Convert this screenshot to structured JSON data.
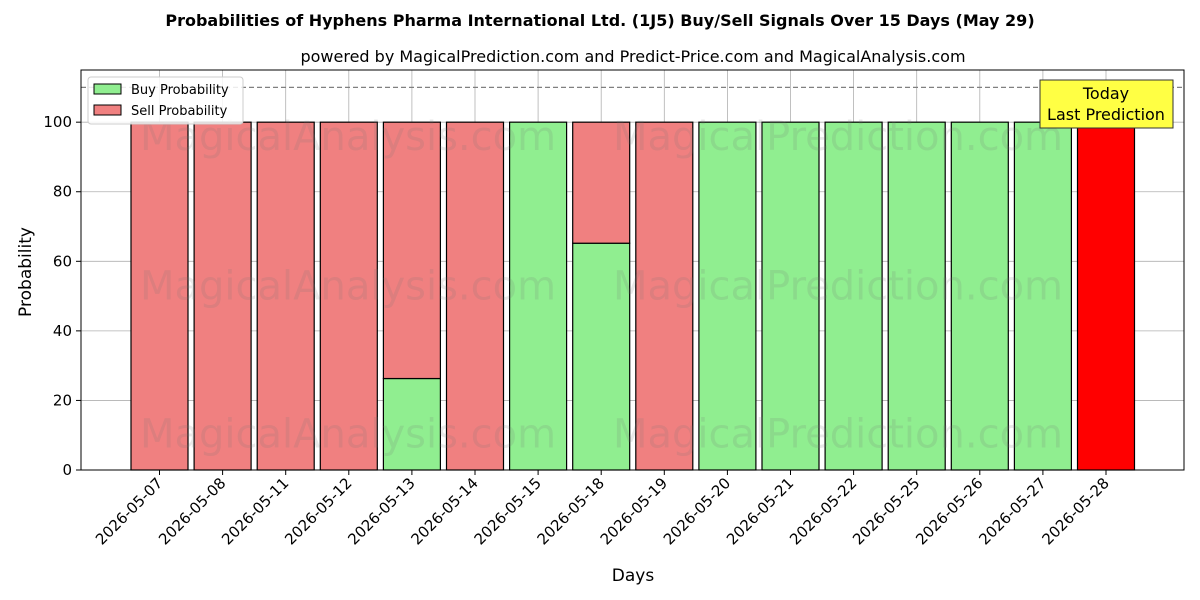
{
  "chart_data": {
    "type": "bar",
    "stacked": true,
    "title": "Probabilities of Hyphens Pharma International Ltd. (1J5) Buy/Sell Signals Over 15 Days (May 29)",
    "subtitle": "powered by MagicalPrediction.com and Predict-Price.com and MagicalAnalysis.com",
    "xlabel": "Days",
    "ylabel": "Probability",
    "ylim": [
      0,
      115
    ],
    "yticks": [
      0,
      20,
      40,
      60,
      80,
      100
    ],
    "reference_line": 110,
    "grid": true,
    "legend_position": "top-left",
    "categories": [
      "2026-05-07",
      "2026-05-08",
      "2026-05-11",
      "2026-05-12",
      "2026-05-13",
      "2026-05-14",
      "2026-05-15",
      "2026-05-18",
      "2026-05-19",
      "2026-05-20",
      "2026-05-21",
      "2026-05-22",
      "2026-05-25",
      "2026-05-26",
      "2026-05-27",
      "2026-05-28"
    ],
    "series": [
      {
        "name": "Buy Probability",
        "color": "#90ee90",
        "values": [
          0,
          0,
          0,
          0,
          26.3,
          0,
          100,
          65.2,
          0,
          100,
          100,
          100,
          100,
          100,
          100,
          0
        ]
      },
      {
        "name": "Sell Probability",
        "color": "#f08080",
        "values": [
          100,
          100,
          100,
          100,
          73.7,
          100,
          0,
          34.8,
          100,
          0,
          0,
          0,
          0,
          0,
          0,
          100
        ]
      }
    ],
    "highlight": {
      "index": 15,
      "color": "#ff0000"
    },
    "annotation": {
      "lines": [
        "Today",
        "Last Prediction"
      ],
      "color": "#ffff44"
    },
    "watermarks": [
      "MagicalAnalysis.com",
      "MagicalPrediction.com"
    ]
  }
}
